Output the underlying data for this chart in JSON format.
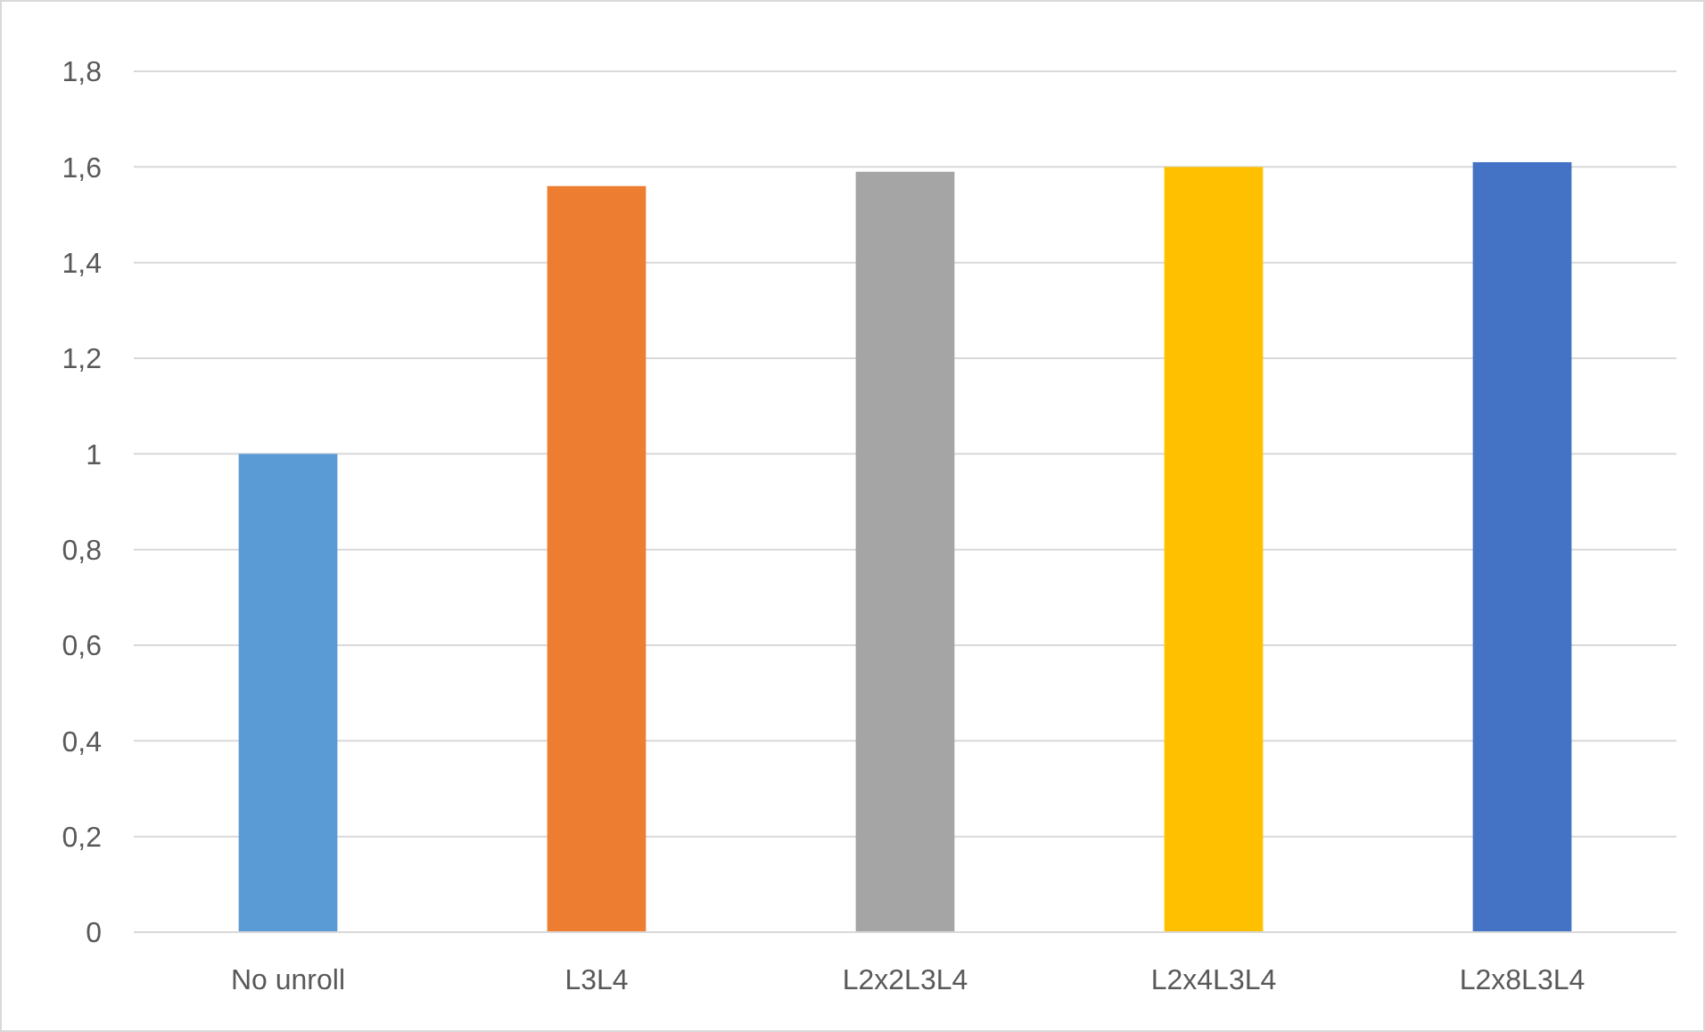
{
  "chart_data": {
    "type": "bar",
    "categories": [
      "No unroll",
      "L3L4",
      "L2x2L3L4",
      "L2x4L3L4",
      "L2x8L3L4"
    ],
    "values": [
      1,
      1.56,
      1.59,
      1.6,
      1.61
    ],
    "colors": [
      "#5b9bd5",
      "#ed7d31",
      "#a5a5a5",
      "#ffc000",
      "#4472c4"
    ],
    "ylim": [
      0,
      1.8
    ],
    "yticks": [
      0,
      {
        "value": 0.2,
        "label": "0,2"
      },
      {
        "value": 0.4,
        "label": "0,4"
      },
      {
        "value": 0.6,
        "label": "0,6"
      },
      {
        "value": 0.8,
        "label": "0,8"
      },
      1,
      {
        "value": 1.2,
        "label": "1,2"
      },
      {
        "value": 1.4,
        "label": "1,4"
      },
      {
        "value": 1.6,
        "label": "1,6"
      },
      {
        "value": 1.8,
        "label": "1,8"
      }
    ],
    "grid": "y"
  }
}
